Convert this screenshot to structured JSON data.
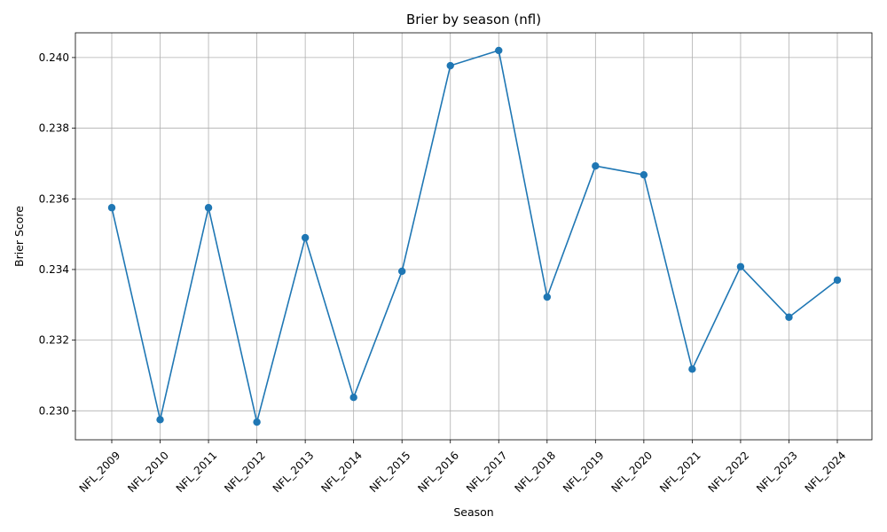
{
  "chart_data": {
    "type": "line",
    "title": "Brier by season (nfl)",
    "xlabel": "Season",
    "ylabel": "Brier Score",
    "categories": [
      "NFL_2009",
      "NFL_2010",
      "NFL_2011",
      "NFL_2012",
      "NFL_2013",
      "NFL_2014",
      "NFL_2015",
      "NFL_2016",
      "NFL_2017",
      "NFL_2018",
      "NFL_2019",
      "NFL_2020",
      "NFL_2021",
      "NFL_2022",
      "NFL_2023",
      "NFL_2024"
    ],
    "series": [
      {
        "values": [
          0.23575,
          0.22975,
          0.23575,
          0.22968,
          0.2349,
          0.23038,
          0.23395,
          0.23977,
          0.2402,
          0.23322,
          0.23693,
          0.23668,
          0.23118,
          0.23408,
          0.23265,
          0.2337
        ],
        "color": "#1f77b4",
        "marker": "circle"
      }
    ],
    "ylim": [
      0.22918,
      0.2407
    ],
    "yticks": [
      "0.230",
      "0.232",
      "0.234",
      "0.236",
      "0.238",
      "0.240"
    ],
    "grid": true,
    "x_tick_rotation": "45"
  }
}
